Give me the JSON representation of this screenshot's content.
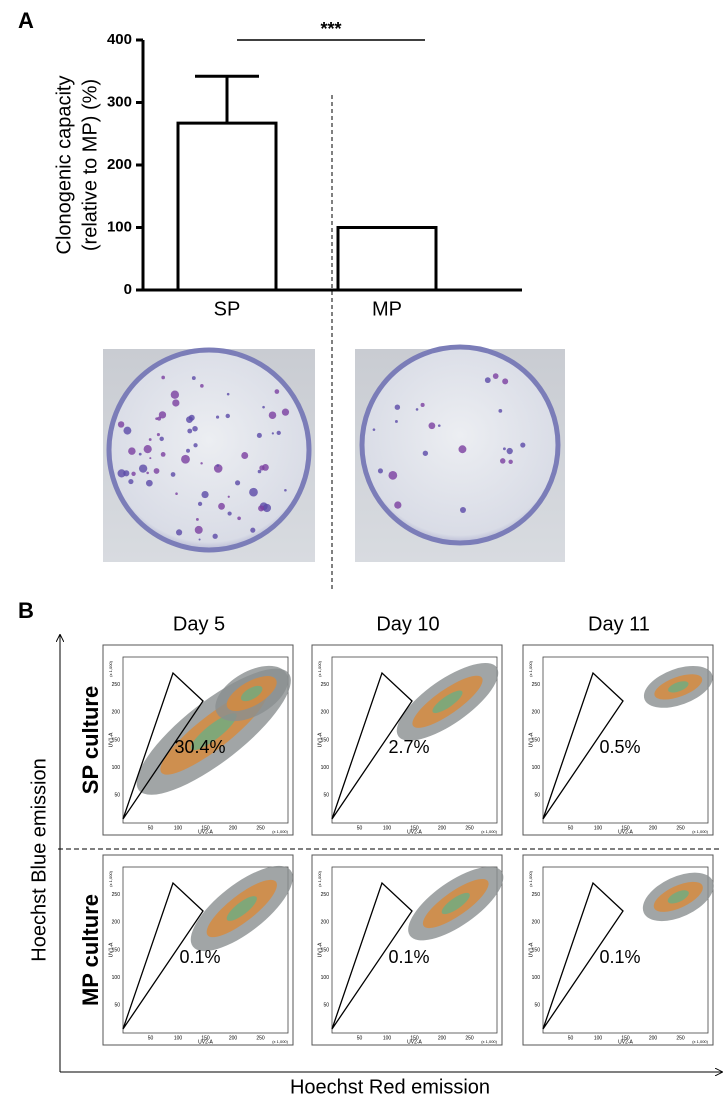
{
  "panel_labels": [
    "A",
    "B"
  ],
  "chart_data": [
    {
      "type": "bar",
      "ylabel": [
        "Clonogenic capacity",
        "(relative to MP) (%)"
      ],
      "categories": [
        "SP",
        "MP"
      ],
      "values": [
        267,
        100
      ],
      "errors": [
        75,
        null
      ],
      "color": "#ffffff",
      "ylim": [
        0,
        400
      ],
      "yticks": [
        0,
        100,
        200,
        300,
        400
      ],
      "annotation": "***"
    }
  ],
  "panel_b": {
    "columns": [
      "Day 5",
      "Day 10",
      "Day 11"
    ],
    "rows": [
      {
        "label": "SP culture",
        "gates": [
          "30.4%",
          "2.7%",
          "0.5%"
        ]
      },
      {
        "label": "MP culture",
        "gates": [
          "0.1%",
          "0.1%",
          "0.1%"
        ]
      }
    ],
    "ylabel": "Hoechst Blue emission",
    "xlabel": "Hoechst Red emission",
    "plot_xlabel": "UV2-A",
    "plot_ylabel": "UV1-A",
    "plot_ticks": [
      50,
      100,
      150,
      200,
      250
    ],
    "plot_scale": "(x 1,000)"
  }
}
